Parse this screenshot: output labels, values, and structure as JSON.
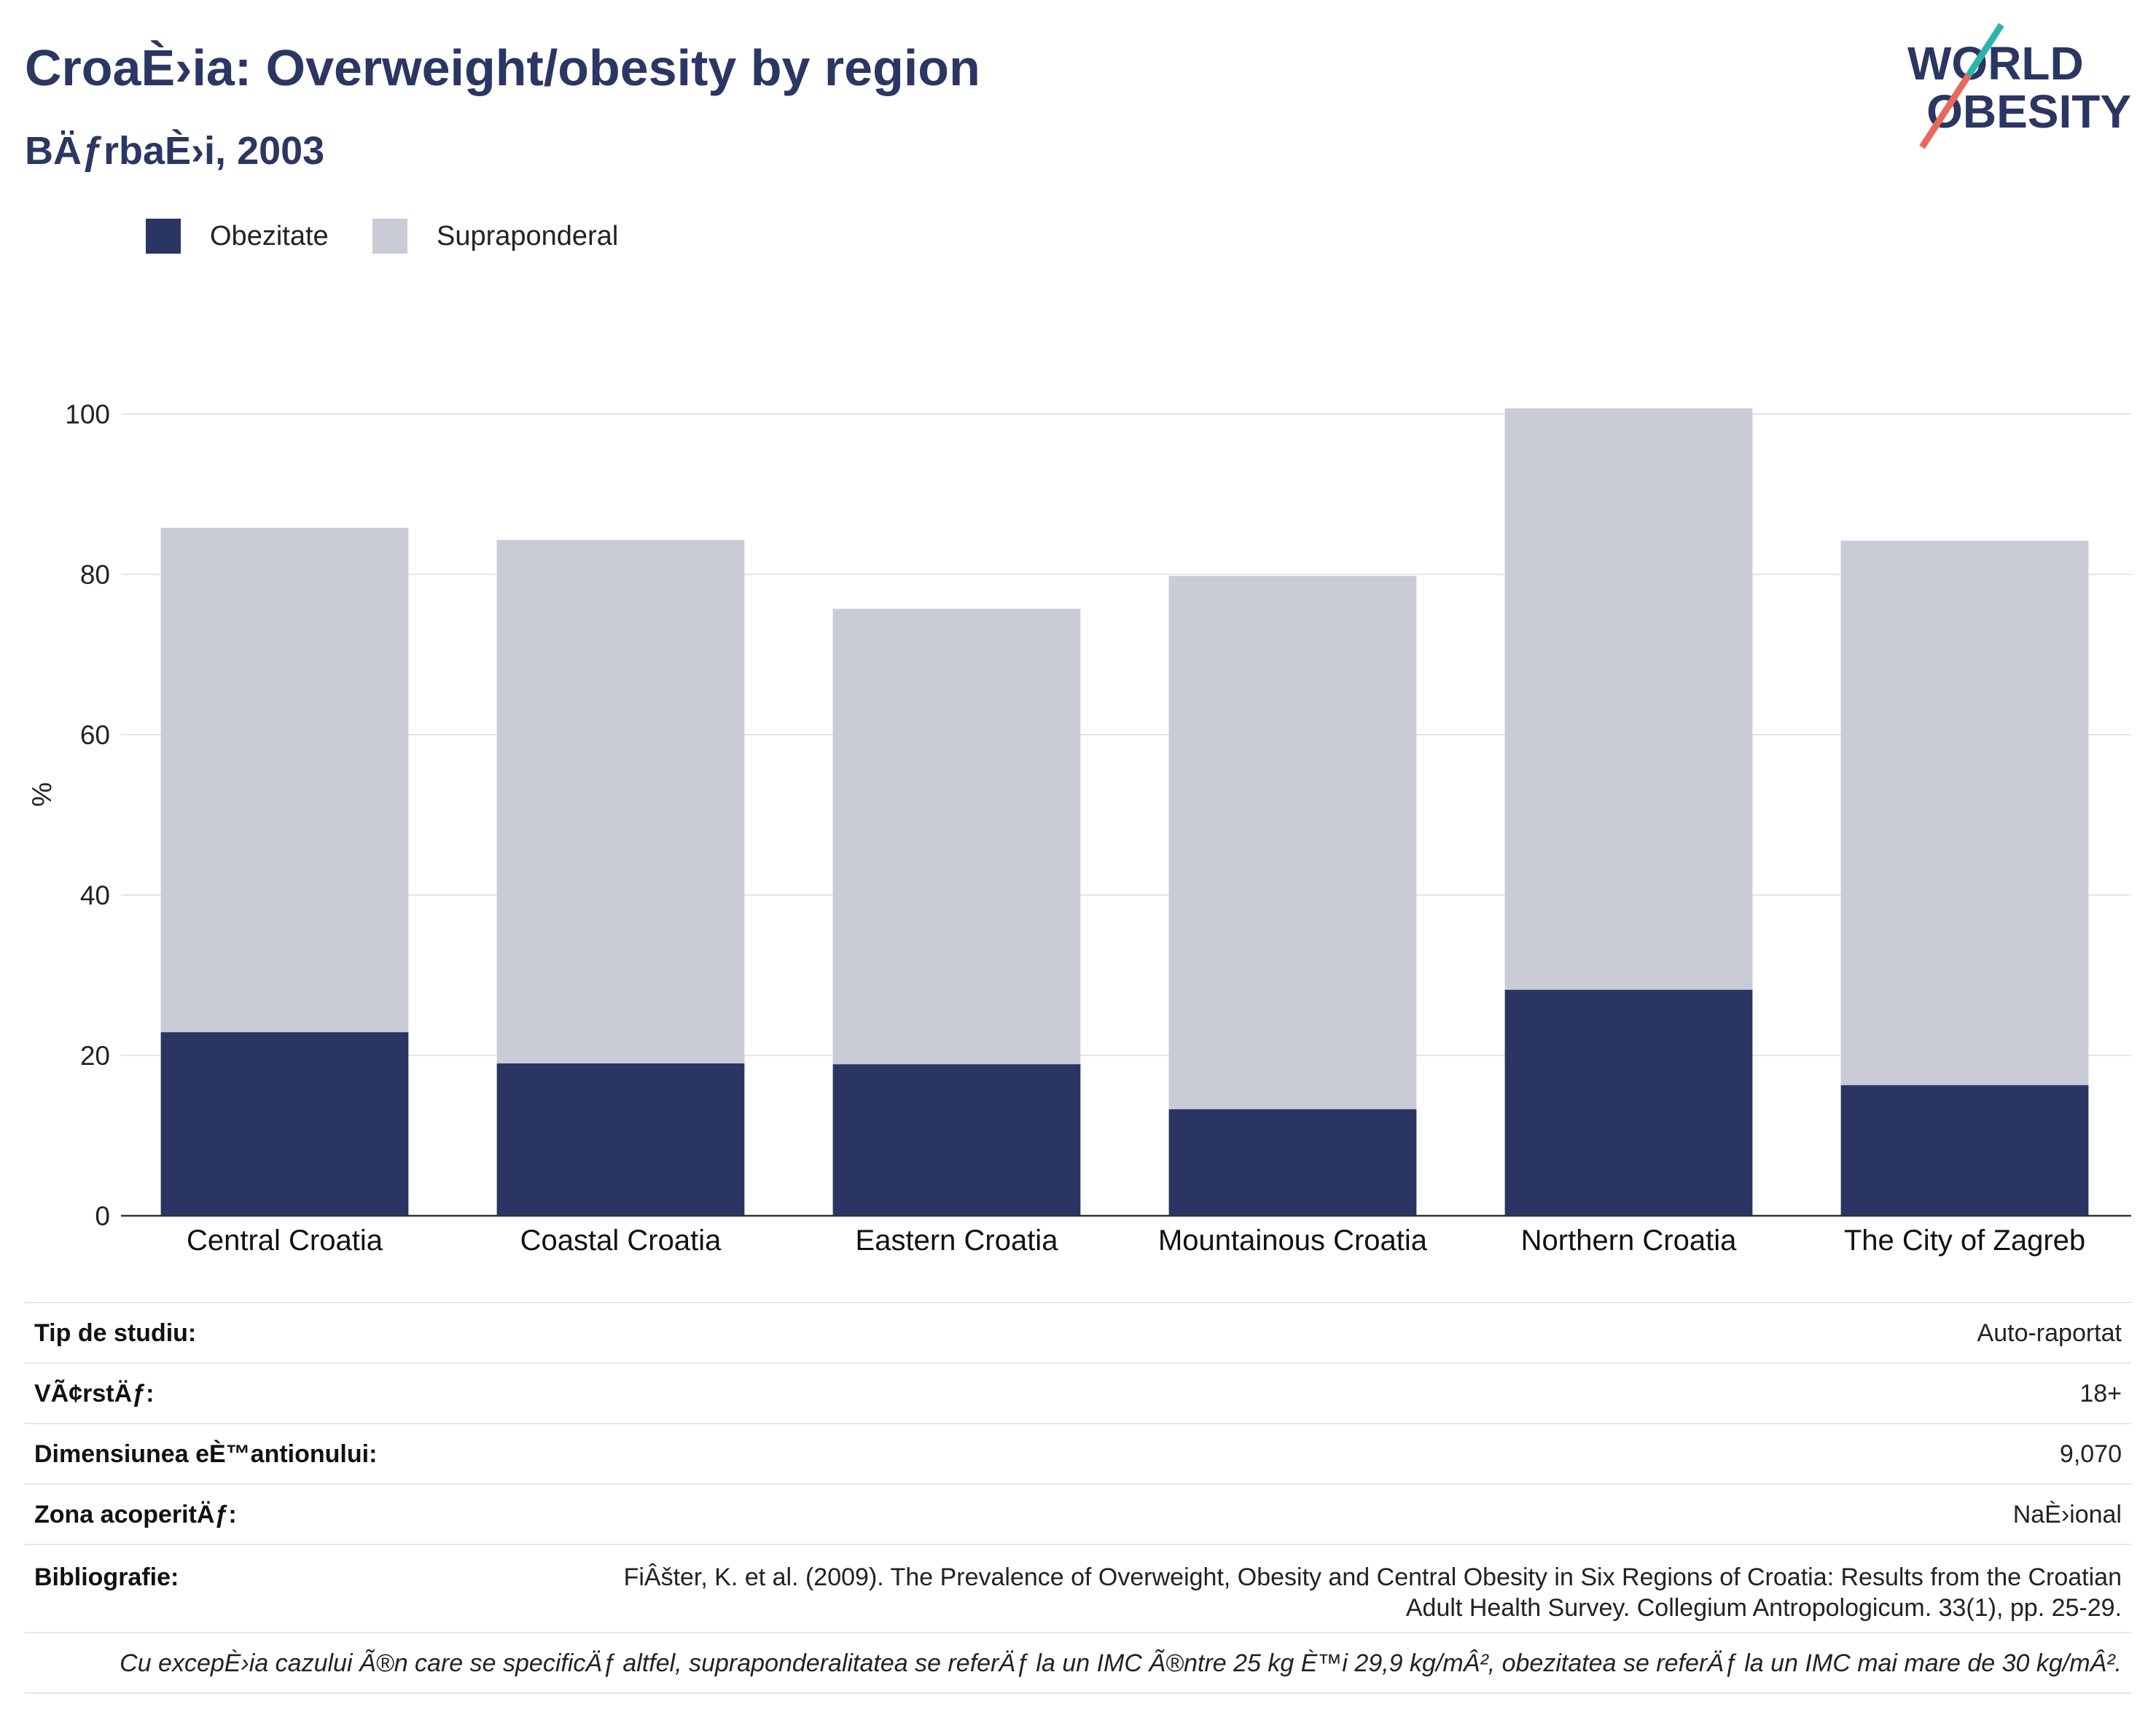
{
  "chart_data": {
    "type": "bar",
    "stacked": true,
    "title": "CroaÈ›ia: Overweight/obesity by region",
    "subtitle": "BÄƒrbaÈ›i, 2003",
    "categories": [
      "Central Croatia",
      "Coastal Croatia",
      "Eastern Croatia",
      "Mountainous Croatia",
      "Northern Croatia",
      "The City of Zagreb"
    ],
    "series": [
      {
        "name": "Obezitate",
        "color": "#2a3563",
        "values": [
          22.9,
          19.0,
          18.9,
          13.3,
          28.2,
          16.3
        ]
      },
      {
        "name": "Supraponderal",
        "color": "#c9cbd7",
        "values": [
          62.9,
          65.3,
          56.8,
          66.5,
          72.5,
          67.9
        ]
      }
    ],
    "ylabel": "%",
    "ylim": [
      0,
      100
    ],
    "yticks": [
      0,
      20,
      40,
      60,
      80,
      100
    ],
    "grid": true,
    "legend": "top-left"
  },
  "logo": {
    "line1": "WORLD",
    "line2": "OBESITY",
    "text_color": "#2b3663",
    "slash_colors": [
      "#2bb5ae",
      "#e8685b"
    ]
  },
  "info": {
    "rows": [
      {
        "label": "Tip de studiu:",
        "value": "Auto-raportat"
      },
      {
        "label": "VÃ¢rstÄƒ:",
        "value": "18+"
      },
      {
        "label": "Dimensiunea eÈ™antionului:",
        "value": "9,070"
      },
      {
        "label": "Zona acoperitÄƒ:",
        "value": "NaÈ›ional"
      }
    ],
    "bibliography": {
      "label": "Bibliografie:",
      "lines": [
        "FiÂšter, K. et al. (2009). The Prevalence of Overweight, Obesity and Central Obesity in Six Regions of Croatia: Results from the Croatian",
        "Adult Health Survey. Collegium Antropologicum. 33(1), pp. 25-29."
      ]
    },
    "footnote": "Cu excepÈ›ia cazului Ã®n care se specificÄƒ altfel, supraponderalitatea se referÄƒ la un IMC Ã®ntre 25 kg È™i 29,9 kg/mÂ², obezitatea se referÄƒ la un IMC mai mare de 30 kg/mÂ²."
  }
}
